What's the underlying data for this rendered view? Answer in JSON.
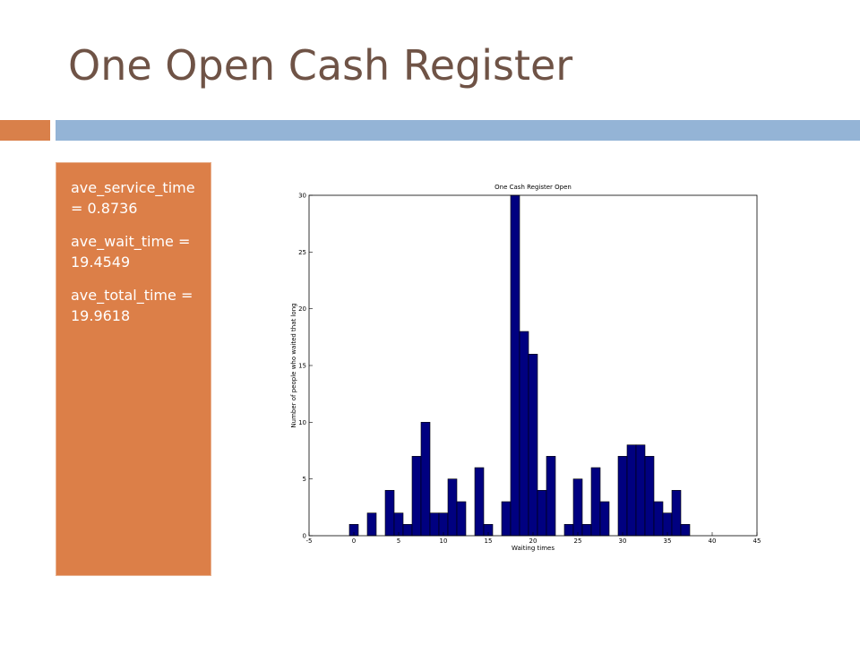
{
  "header": {
    "title": "One Open Cash Register"
  },
  "text_box": {
    "lines": [
      "ave_service_time = 0.8736",
      "ave_wait_time = 19.4549",
      "ave_total_time =19.9618"
    ]
  },
  "chart_data": {
    "type": "histogram",
    "title": "One Cash Register Open",
    "x_label": "Waiting times",
    "y_label": "Number of people who waited that long",
    "bins": [
      -0.5,
      0.5,
      1.5,
      2.5,
      3.5,
      4.5,
      5.5,
      6.5,
      7.5,
      8.5,
      9.5,
      10.5,
      11.5,
      12.5,
      13.5,
      14.5,
      15.5,
      16.5,
      17.5,
      18.5,
      19.5,
      20.5,
      21.5,
      22.5,
      23.5,
      24.5,
      25.5,
      26.5,
      27.5,
      28.5,
      29.5,
      30.5,
      31.5,
      32.5,
      33.5,
      34.5,
      35.5,
      36.5,
      37.5
    ],
    "values": [
      1,
      0,
      2,
      0,
      4,
      2,
      1,
      7,
      10,
      2,
      2,
      5,
      3,
      0,
      6,
      1,
      0,
      3,
      30,
      18,
      16,
      4,
      7,
      0,
      1,
      5,
      1,
      6,
      3,
      0,
      7,
      8,
      8,
      7,
      3,
      2,
      4,
      1
    ],
    "color": "#000080",
    "xlim": [
      -5,
      45
    ],
    "xticks": [
      -5,
      0,
      5,
      10,
      15,
      20,
      25,
      30,
      35,
      40,
      45
    ],
    "ylim": [
      0,
      30
    ],
    "yticks": [
      0,
      5,
      10,
      15,
      20,
      25,
      30
    ]
  }
}
